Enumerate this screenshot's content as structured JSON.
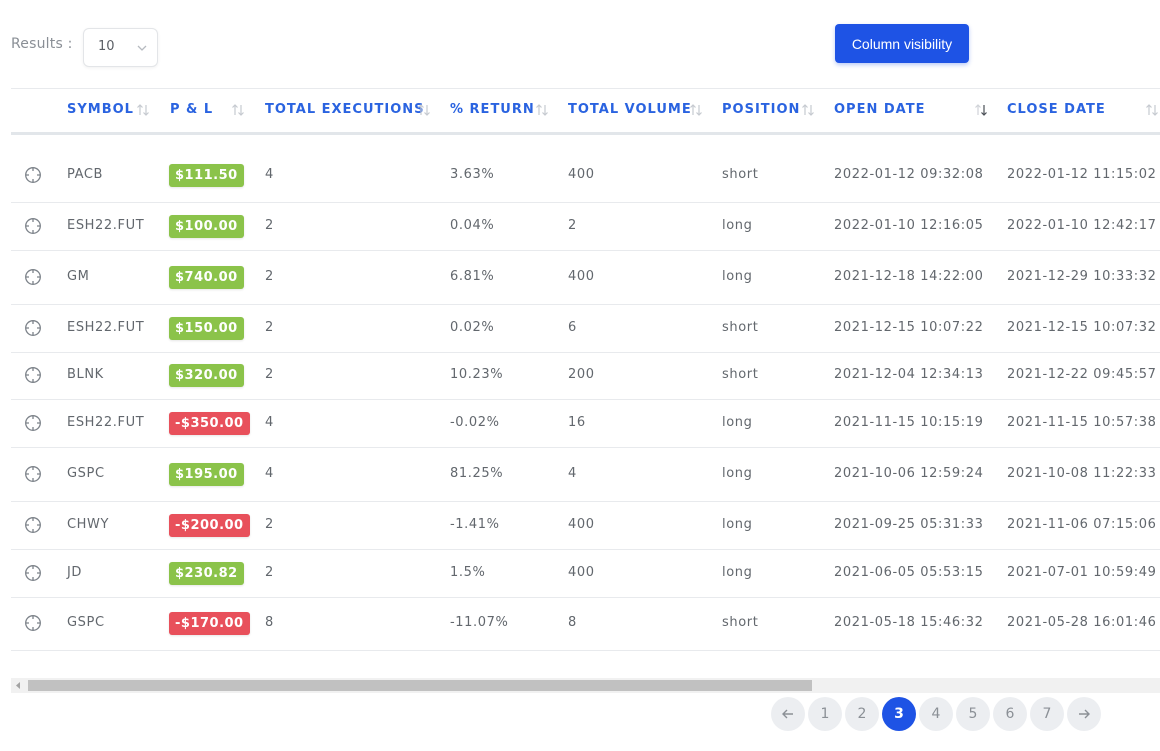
{
  "controls": {
    "results_label": "Results :",
    "page_size": "10",
    "column_visibility_label": "Column visibility"
  },
  "columns": [
    {
      "label": "SYMBOL"
    },
    {
      "label": "P & L"
    },
    {
      "label": "TOTAL EXECUTIONS"
    },
    {
      "label": "% RETURN"
    },
    {
      "label": "TOTAL VOLUME"
    },
    {
      "label": "POSITION"
    },
    {
      "label": "OPEN DATE"
    },
    {
      "label": "CLOSE DATE"
    }
  ],
  "rows": [
    {
      "symbol": "PACB",
      "pnl": "$111.50",
      "pnl_status": "positive",
      "executions": "4",
      "return": "3.63%",
      "volume": "400",
      "position": "short",
      "open": "2022-01-12 09:32:08",
      "close": "2022-01-12 11:15:02"
    },
    {
      "symbol": "ESH22.FUT",
      "pnl": "$100.00",
      "pnl_status": "positive",
      "executions": "2",
      "return": "0.04%",
      "volume": "2",
      "position": "long",
      "open": "2022-01-10 12:16:05",
      "close": "2022-01-10 12:42:17"
    },
    {
      "symbol": "GM",
      "pnl": "$740.00",
      "pnl_status": "positive",
      "executions": "2",
      "return": "6.81%",
      "volume": "400",
      "position": "long",
      "open": "2021-12-18 14:22:00",
      "close": "2021-12-29 10:33:32"
    },
    {
      "symbol": "ESH22.FUT",
      "pnl": "$150.00",
      "pnl_status": "positive",
      "executions": "2",
      "return": "0.02%",
      "volume": "6",
      "position": "short",
      "open": "2021-12-15 10:07:22",
      "close": "2021-12-15 10:07:32"
    },
    {
      "symbol": "BLNK",
      "pnl": "$320.00",
      "pnl_status": "positive",
      "executions": "2",
      "return": "10.23%",
      "volume": "200",
      "position": "short",
      "open": "2021-12-04 12:34:13",
      "close": "2021-12-22 09:45:57"
    },
    {
      "symbol": "ESH22.FUT",
      "pnl": "-$350.00",
      "pnl_status": "negative",
      "executions": "4",
      "return": "-0.02%",
      "volume": "16",
      "position": "long",
      "open": "2021-11-15 10:15:19",
      "close": "2021-11-15 10:57:38"
    },
    {
      "symbol": "GSPC",
      "pnl": "$195.00",
      "pnl_status": "positive",
      "executions": "4",
      "return": "81.25%",
      "volume": "4",
      "position": "long",
      "open": "2021-10-06 12:59:24",
      "close": "2021-10-08 11:22:33"
    },
    {
      "symbol": "CHWY",
      "pnl": "-$200.00",
      "pnl_status": "negative",
      "executions": "2",
      "return": "-1.41%",
      "volume": "400",
      "position": "long",
      "open": "2021-09-25 05:31:33",
      "close": "2021-11-06 07:15:06"
    },
    {
      "symbol": "JD",
      "pnl": "$230.82",
      "pnl_status": "positive",
      "executions": "2",
      "return": "1.5%",
      "volume": "400",
      "position": "long",
      "open": "2021-06-05 05:53:15",
      "close": "2021-07-01 10:59:49"
    },
    {
      "symbol": "GSPC",
      "pnl": "-$170.00",
      "pnl_status": "negative",
      "executions": "8",
      "return": "-11.07%",
      "volume": "8",
      "position": "short",
      "open": "2021-05-18 15:46:32",
      "close": "2021-05-28 16:01:46"
    }
  ],
  "pagination": {
    "pages": [
      "1",
      "2",
      "3",
      "4",
      "5",
      "6",
      "7"
    ],
    "current": "3",
    "prev_icon": "arrow-left-icon",
    "next_icon": "arrow-right-icon"
  },
  "row_icon": "crosshair-icon",
  "colors": {
    "accent": "#1e53e5",
    "header_text": "#2a63e0",
    "positive": "#8bc34a",
    "negative": "#e8505b"
  },
  "sort_state": {
    "active_column": "OPEN DATE",
    "direction": "descending"
  }
}
